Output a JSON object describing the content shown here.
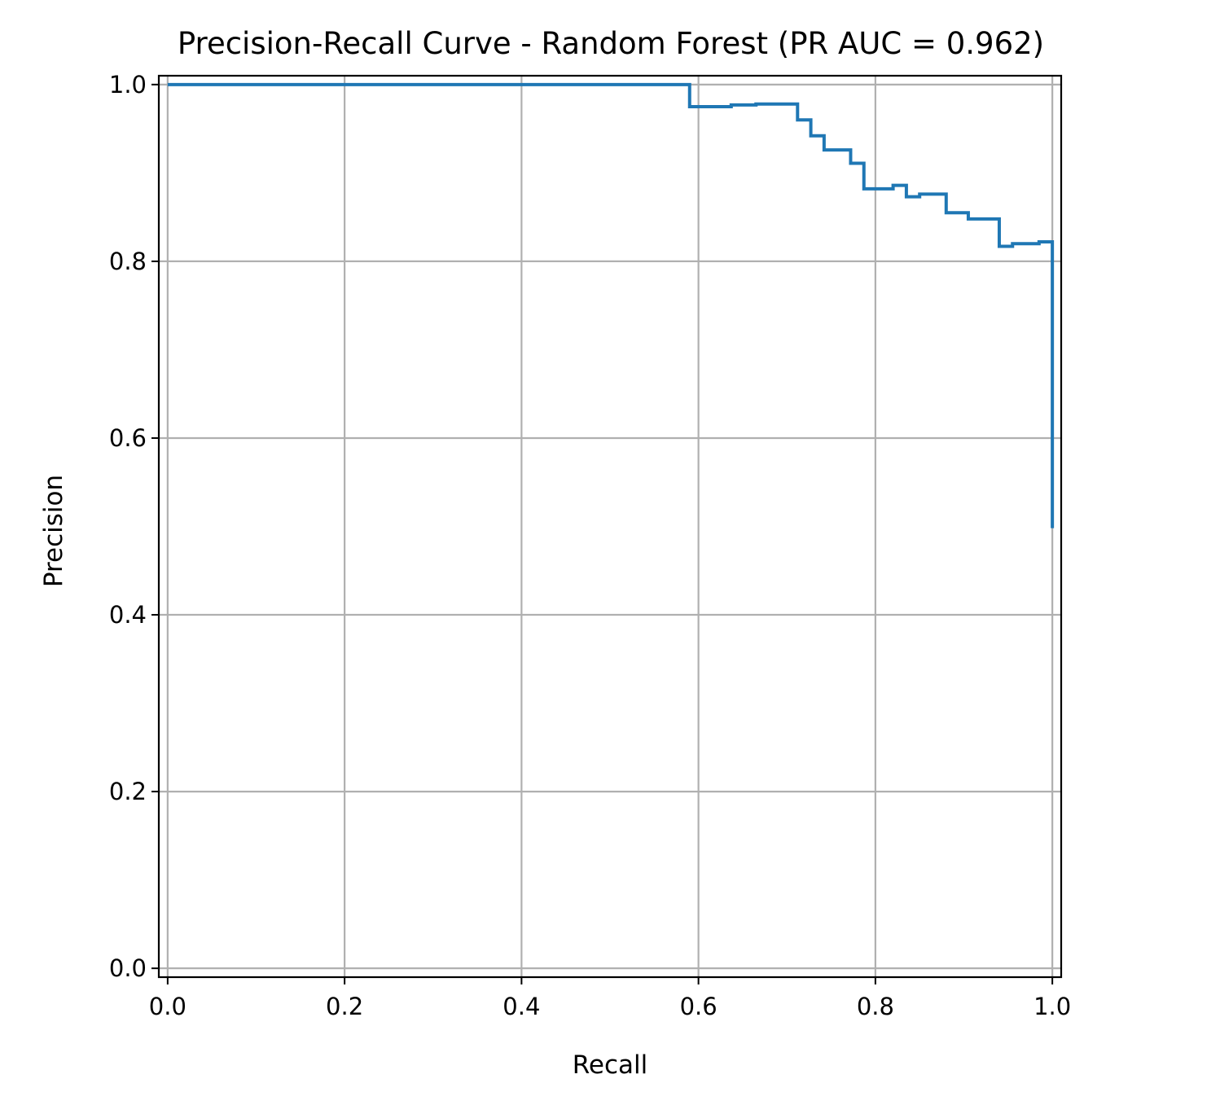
{
  "chart_data": {
    "type": "line",
    "title": "Precision-Recall Curve - Random Forest (PR AUC = 0.962)",
    "xlabel": "Recall",
    "ylabel": "Precision",
    "xlim": [
      -0.01,
      1.01
    ],
    "ylim": [
      -0.01,
      1.01
    ],
    "grid": true,
    "xticks": [
      "0.0",
      "0.2",
      "0.4",
      "0.6",
      "0.8",
      "1.0"
    ],
    "yticks": [
      "0.0",
      "0.2",
      "0.4",
      "0.6",
      "0.8",
      "1.0"
    ],
    "line_style": "step-post",
    "color": "#1f77b4",
    "series": [
      {
        "recall": [
          0.0,
          0.59,
          0.59,
          0.637,
          0.665,
          0.712,
          0.712,
          0.727,
          0.727,
          0.742,
          0.742,
          0.772,
          0.772,
          0.787,
          0.787,
          0.82,
          0.835,
          0.835,
          0.85,
          0.88,
          0.88,
          0.905,
          0.905,
          0.94,
          0.94,
          0.955,
          0.985,
          1.0,
          1.0
        ],
        "precision": [
          1.0,
          1.0,
          0.975,
          0.977,
          0.978,
          0.978,
          0.96,
          0.96,
          0.942,
          0.942,
          0.926,
          0.926,
          0.911,
          0.911,
          0.882,
          0.886,
          0.886,
          0.873,
          0.876,
          0.876,
          0.855,
          0.855,
          0.848,
          0.848,
          0.817,
          0.82,
          0.822,
          0.815,
          0.498
        ]
      }
    ]
  }
}
